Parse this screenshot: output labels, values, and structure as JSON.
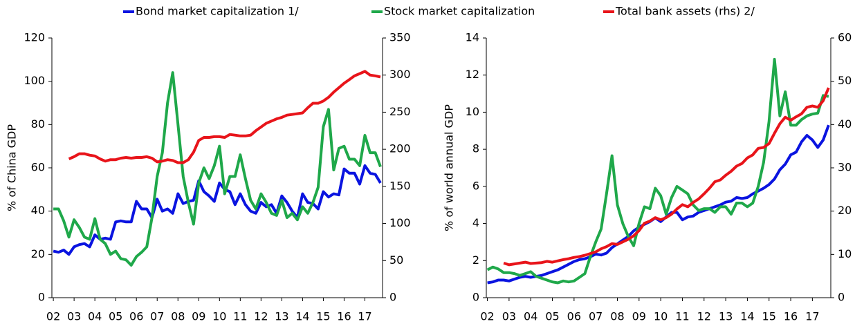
{
  "legend": [
    {
      "name": "Bond market capitalization 1/",
      "color": "#0a14e0"
    },
    {
      "name": "Stock market capitalization",
      "color": "#1fa84a"
    },
    {
      "name": "Total bank assets (rhs) 2/",
      "color": "#e8141a"
    }
  ],
  "chart_data": [
    {
      "type": "line",
      "y_label": "% of China GDP",
      "x": [
        2002,
        2002.25,
        2002.5,
        2002.75,
        2003,
        2003.25,
        2003.5,
        2003.75,
        2004,
        2004.25,
        2004.5,
        2004.75,
        2005,
        2005.25,
        2005.5,
        2005.75,
        2006,
        2006.25,
        2006.5,
        2006.75,
        2007,
        2007.25,
        2007.5,
        2007.75,
        2008,
        2008.25,
        2008.5,
        2008.75,
        2009,
        2009.25,
        2009.5,
        2009.75,
        2010,
        2010.25,
        2010.5,
        2010.75,
        2011,
        2011.25,
        2011.5,
        2011.75,
        2012,
        2012.25,
        2012.5,
        2012.75,
        2013,
        2013.25,
        2013.5,
        2013.75,
        2014,
        2014.25,
        2014.5,
        2014.75,
        2015,
        2015.25,
        2015.5,
        2015.75,
        2016,
        2016.25,
        2016.5,
        2016.75,
        2017,
        2017.25,
        2017.5,
        2017.75
      ],
      "xlim": [
        2001.93,
        2017.85
      ],
      "xticks": [
        {
          "value": 2002,
          "label": "02"
        },
        {
          "value": 2003,
          "label": "03"
        },
        {
          "value": 2004,
          "label": "04"
        },
        {
          "value": 2005,
          "label": "05"
        },
        {
          "value": 2006,
          "label": "06"
        },
        {
          "value": 2007,
          "label": "07"
        },
        {
          "value": 2008,
          "label": "08"
        },
        {
          "value": 2009,
          "label": "09"
        },
        {
          "value": 2010,
          "label": "10"
        },
        {
          "value": 2011,
          "label": "11"
        },
        {
          "value": 2012,
          "label": "12"
        },
        {
          "value": 2013,
          "label": "13"
        },
        {
          "value": 2014,
          "label": "14"
        },
        {
          "value": 2015,
          "label": "15"
        },
        {
          "value": 2016,
          "label": "16"
        },
        {
          "value": 2017,
          "label": "17"
        }
      ],
      "ylim": [
        0,
        120
      ],
      "yticks": [
        0,
        20,
        40,
        60,
        80,
        100,
        120
      ],
      "y2lim": [
        0,
        350
      ],
      "y2ticks": [
        0,
        50,
        100,
        150,
        200,
        250,
        300,
        350
      ],
      "series": [
        {
          "name": "Bond market capitalization 1/",
          "color": "#0a14e0",
          "values": [
            21.5,
            21,
            22,
            20,
            23.5,
            24.5,
            25,
            23.5,
            29,
            27,
            27.5,
            27,
            35,
            35.5,
            35,
            35,
            44.5,
            41,
            41,
            37,
            45.5,
            40,
            41,
            39,
            48,
            43.5,
            44.5,
            45,
            54,
            49,
            47,
            44.5,
            53,
            50,
            49,
            43,
            48,
            43,
            40,
            39,
            44,
            42,
            43,
            39,
            47,
            44,
            40,
            37,
            48,
            44,
            43.5,
            41,
            49,
            46.5,
            48,
            47.5,
            59.5,
            57.5,
            57.5,
            52.5,
            61,
            57.5,
            57,
            53
          ]
        },
        {
          "name": "Stock market capitalization",
          "color": "#1fa84a",
          "values": [
            41,
            41,
            35.5,
            28,
            36,
            32.5,
            28,
            27,
            36.5,
            27,
            25,
            20,
            21.5,
            18,
            17.5,
            15,
            19,
            21,
            23.5,
            37,
            56,
            67,
            90,
            104,
            80,
            56,
            44,
            34,
            53,
            60,
            55,
            61,
            70,
            48,
            56,
            56,
            66,
            55,
            45,
            41,
            48,
            44,
            39,
            38,
            45,
            37,
            39,
            36,
            42,
            39,
            44,
            51,
            79,
            87,
            59,
            69,
            70,
            64,
            64,
            61,
            75,
            67,
            67,
            60.5
          ]
        },
        {
          "name": "Total bank assets (rhs) 2/",
          "color": "#e8141a",
          "axis": "y2",
          "values": [
            null,
            null,
            null,
            187,
            190,
            194,
            194,
            192,
            191,
            187,
            184,
            186,
            186,
            188,
            189,
            188,
            189,
            189,
            190,
            188,
            183,
            184,
            186,
            185,
            182,
            182,
            186,
            196,
            212,
            216,
            216,
            217,
            217,
            216,
            220,
            219,
            218,
            218,
            219,
            225,
            230,
            235,
            238,
            241,
            243,
            246,
            247,
            248,
            249,
            256,
            262,
            262,
            265,
            270,
            277,
            283,
            289,
            294,
            299,
            302,
            305,
            300,
            299,
            297.5
          ]
        }
      ]
    },
    {
      "type": "line",
      "y_label": "% of world annual GDP",
      "x": [
        2002,
        2002.25,
        2002.5,
        2002.75,
        2003,
        2003.25,
        2003.5,
        2003.75,
        2004,
        2004.25,
        2004.5,
        2004.75,
        2005,
        2005.25,
        2005.5,
        2005.75,
        2006,
        2006.25,
        2006.5,
        2006.75,
        2007,
        2007.25,
        2007.5,
        2007.75,
        2008,
        2008.25,
        2008.5,
        2008.75,
        2009,
        2009.25,
        2009.5,
        2009.75,
        2010,
        2010.25,
        2010.5,
        2010.75,
        2011,
        2011.25,
        2011.5,
        2011.75,
        2012,
        2012.25,
        2012.5,
        2012.75,
        2013,
        2013.25,
        2013.5,
        2013.75,
        2014,
        2014.25,
        2014.5,
        2014.75,
        2015,
        2015.25,
        2015.5,
        2015.75,
        2016,
        2016.25,
        2016.5,
        2016.75,
        2017,
        2017.25,
        2017.5,
        2017.75
      ],
      "xlim": [
        2001.95,
        2017.85
      ],
      "xticks": [
        {
          "value": 2002,
          "label": "02"
        },
        {
          "value": 2003,
          "label": "03"
        },
        {
          "value": 2004,
          "label": "04"
        },
        {
          "value": 2005,
          "label": "05"
        },
        {
          "value": 2006,
          "label": "06"
        },
        {
          "value": 2007,
          "label": "07"
        },
        {
          "value": 2008,
          "label": "08"
        },
        {
          "value": 2009,
          "label": "09"
        },
        {
          "value": 2010,
          "label": "10"
        },
        {
          "value": 2011,
          "label": "11"
        },
        {
          "value": 2012,
          "label": "12"
        },
        {
          "value": 2013,
          "label": "13"
        },
        {
          "value": 2014,
          "label": "14"
        },
        {
          "value": 2015,
          "label": "15"
        },
        {
          "value": 2016,
          "label": "16"
        },
        {
          "value": 2017,
          "label": "17"
        }
      ],
      "ylim": [
        0,
        14
      ],
      "yticks": [
        0,
        2,
        4,
        6,
        8,
        10,
        12,
        14
      ],
      "y2lim": [
        0,
        60
      ],
      "y2ticks": [
        0,
        10,
        20,
        30,
        40,
        50,
        60
      ],
      "series": [
        {
          "color": "#0a14e0",
          "values": [
            0.8,
            0.85,
            0.95,
            0.95,
            0.9,
            1.0,
            1.1,
            1.15,
            1.1,
            1.15,
            1.2,
            1.3,
            1.4,
            1.5,
            1.65,
            1.8,
            1.95,
            2.05,
            2.1,
            2.2,
            2.35,
            2.3,
            2.4,
            2.7,
            2.9,
            3.1,
            3.3,
            3.6,
            3.8,
            3.95,
            4.1,
            4.3,
            4.1,
            4.35,
            4.6,
            4.6,
            4.2,
            4.35,
            4.4,
            4.6,
            4.7,
            4.8,
            4.9,
            5.0,
            5.15,
            5.2,
            5.4,
            5.35,
            5.4,
            5.6,
            5.75,
            5.9,
            6.1,
            6.4,
            6.9,
            7.2,
            7.7,
            7.85,
            8.4,
            8.75,
            8.5,
            8.1,
            8.5,
            9.3
          ]
        },
        {
          "color": "#1fa84a",
          "values": [
            1.5,
            1.65,
            1.55,
            1.35,
            1.35,
            1.3,
            1.2,
            1.3,
            1.4,
            1.15,
            1.05,
            0.95,
            0.85,
            0.8,
            0.9,
            0.85,
            0.9,
            1.1,
            1.3,
            2.2,
            3.0,
            3.7,
            5.6,
            7.65,
            5.0,
            4.0,
            3.3,
            2.8,
            4.0,
            4.9,
            4.8,
            5.9,
            5.5,
            4.5,
            5.4,
            6.0,
            5.8,
            5.6,
            5.0,
            4.7,
            4.8,
            4.8,
            4.6,
            4.9,
            4.9,
            4.5,
            5.1,
            5.1,
            4.9,
            5.1,
            6.0,
            7.3,
            9.5,
            12.85,
            9.8,
            11.1,
            9.3,
            9.3,
            9.6,
            9.8,
            9.9,
            9.95,
            10.9,
            10.85
          ]
        },
        {
          "color": "#e8141a",
          "axis": "y2",
          "values": [
            null,
            null,
            null,
            8.0,
            7.6,
            7.8,
            8.0,
            8.2,
            7.9,
            8.0,
            8.1,
            8.4,
            8.2,
            8.5,
            8.8,
            9.0,
            9.3,
            9.5,
            9.8,
            10.2,
            10.6,
            11.3,
            11.8,
            12.5,
            12.3,
            12.9,
            13.5,
            14.3,
            15.5,
            17.2,
            17.7,
            18.5,
            18.0,
            18.5,
            19.3,
            20.5,
            21.5,
            21.0,
            22.0,
            22.8,
            24.0,
            25.3,
            26.8,
            27.2,
            28.3,
            29.2,
            30.4,
            31.0,
            32.3,
            33.0,
            34.5,
            34.7,
            35.6,
            38.0,
            40.2,
            41.7,
            41.0,
            41.8,
            42.5,
            44.0,
            44.3,
            44.0,
            45.5,
            48.5
          ]
        }
      ]
    }
  ]
}
